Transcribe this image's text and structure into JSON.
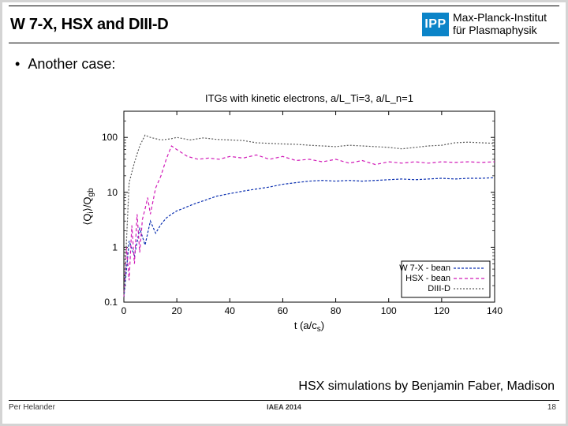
{
  "header": {
    "title": "W 7-X, HSX and DIII-D",
    "logo_text": "IPP",
    "logo_bg": "#0b84c8",
    "institute_line1": "Max-Planck-Institut",
    "institute_line2": "für Plasmaphysik"
  },
  "bullet_text": "Another case:",
  "caption": "HSX simulations by Benjamin Faber, Madison",
  "footer": {
    "left": "Per Helander",
    "center": "IAEA 2014",
    "page": "18"
  },
  "chart": {
    "type": "line-log",
    "title": "ITGs with kinetic electrons, a/L_Ti=3, a/L_n=1",
    "title_fontsize": 13,
    "xlabel": "t (a/c_s)",
    "ylabel": "⟨Q_i⟩/Q_gb",
    "label_fontsize": 13,
    "tick_fontsize": 12,
    "xlim": [
      0,
      140
    ],
    "xtick_step": 20,
    "ylog": true,
    "ylim": [
      0.1,
      300
    ],
    "yticks": [
      0.1,
      1,
      10,
      100
    ],
    "grid": false,
    "border_color": "#000000",
    "background_color": "#ffffff",
    "legend": {
      "position": "bottom-right",
      "box_border": "#000000",
      "items": [
        {
          "label": "W 7-X - bean",
          "color": "#0a2fb0",
          "dash": "3 2"
        },
        {
          "label": "HSX - bean",
          "color": "#d11bb8",
          "dash": "4 3"
        },
        {
          "label": "DIII-D",
          "color": "#5a5a5a",
          "dash": "2 2"
        }
      ]
    },
    "series": [
      {
        "name": "W7X-bean",
        "color": "#0a2fb0",
        "dash": "3 2",
        "width": 1.2,
        "x": [
          0,
          2,
          4,
          6,
          8,
          10,
          12,
          14,
          16,
          18,
          20,
          22,
          24,
          26,
          28,
          30,
          35,
          40,
          45,
          50,
          55,
          60,
          65,
          70,
          75,
          80,
          85,
          90,
          95,
          100,
          105,
          110,
          115,
          120,
          125,
          130,
          135,
          140
        ],
        "y": [
          0.12,
          1.3,
          0.7,
          2.2,
          1.1,
          3.0,
          1.8,
          2.6,
          3.4,
          4.0,
          4.6,
          5.0,
          5.5,
          6.0,
          6.5,
          7.0,
          8.5,
          9.5,
          10.5,
          11.5,
          12.5,
          14.0,
          15.0,
          16.0,
          16.5,
          16.0,
          16.5,
          16.0,
          16.5,
          17.0,
          17.5,
          17.0,
          17.5,
          18.0,
          17.5,
          18.0,
          18.0,
          18.5
        ]
      },
      {
        "name": "HSX-bean",
        "color": "#d11bb8",
        "dash": "4 3",
        "width": 1.2,
        "x": [
          0,
          1,
          2,
          3,
          4,
          5,
          6,
          7,
          8,
          9,
          10,
          12,
          14,
          16,
          18,
          20,
          24,
          28,
          32,
          36,
          40,
          45,
          50,
          55,
          60,
          65,
          70,
          75,
          80,
          85,
          90,
          95,
          100,
          105,
          110,
          115,
          120,
          125,
          130,
          135,
          140
        ],
        "y": [
          0.12,
          1.0,
          0.25,
          2.5,
          0.5,
          4.0,
          0.8,
          3.2,
          5.0,
          8.0,
          4.0,
          12,
          20,
          40,
          70,
          60,
          45,
          40,
          42,
          40,
          45,
          42,
          48,
          40,
          45,
          38,
          40,
          36,
          40,
          34,
          38,
          32,
          36,
          34,
          36,
          34,
          36,
          35,
          36,
          35,
          36
        ]
      },
      {
        "name": "DIII-D",
        "color": "#5a5a5a",
        "dash": "2 2",
        "width": 1.2,
        "x": [
          0,
          2,
          4,
          6,
          8,
          10,
          12,
          14,
          16,
          18,
          20,
          25,
          30,
          35,
          40,
          45,
          50,
          55,
          60,
          65,
          70,
          75,
          80,
          85,
          90,
          95,
          100,
          105,
          110,
          115,
          120,
          125,
          130,
          135,
          140
        ],
        "y": [
          0.12,
          15,
          35,
          70,
          110,
          100,
          95,
          90,
          92,
          95,
          100,
          90,
          98,
          92,
          90,
          88,
          80,
          78,
          76,
          75,
          72,
          70,
          68,
          72,
          70,
          68,
          66,
          62,
          66,
          70,
          72,
          80,
          82,
          80,
          78
        ]
      }
    ]
  }
}
